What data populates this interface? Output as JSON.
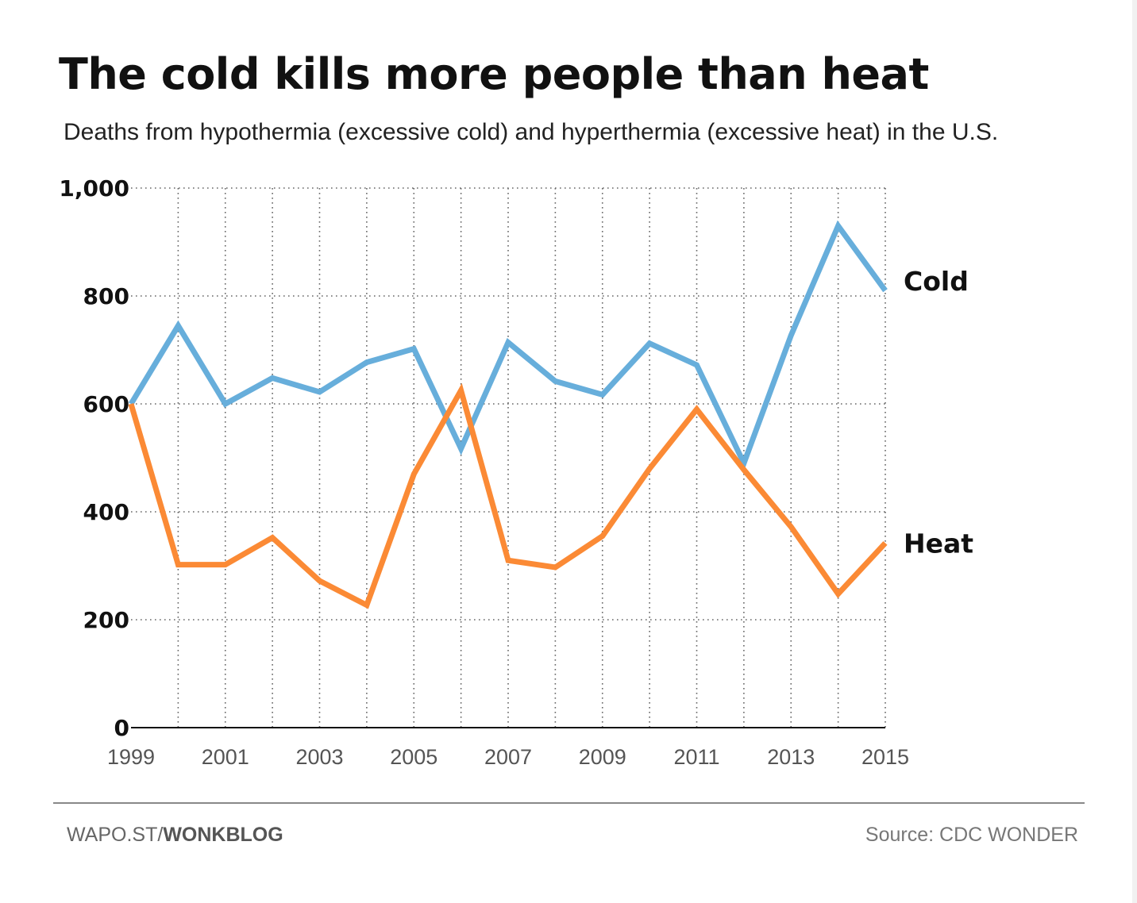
{
  "title": "The cold kills more people than heat",
  "subtitle": "Deaths from hypothermia (excessive cold) and hyperthermia (excessive heat) in the U.S.",
  "footer": {
    "left_prefix": "WAPO.ST/",
    "left_bold": "WONKBLOG",
    "source": "Source: CDC WONDER"
  },
  "colors": {
    "cold": "#67aedb",
    "heat": "#fb8a35",
    "grid": "#666666",
    "axis": "#111111"
  },
  "chart_data": {
    "type": "line",
    "x": [
      1999,
      2000,
      2001,
      2002,
      2003,
      2004,
      2005,
      2006,
      2007,
      2008,
      2009,
      2010,
      2011,
      2012,
      2013,
      2014,
      2015
    ],
    "x_tick_labels": [
      "1999",
      "2001",
      "2003",
      "2005",
      "2007",
      "2009",
      "2011",
      "2013",
      "2015"
    ],
    "y_tick_labels": [
      "0",
      "200",
      "400",
      "600",
      "800",
      "1,000"
    ],
    "y_ticks": [
      0,
      200,
      400,
      600,
      800,
      1000
    ],
    "ylim": [
      0,
      1000
    ],
    "xlim": [
      1999,
      2015
    ],
    "grid": true,
    "series": [
      {
        "name": "Cold",
        "color": "#67aedb",
        "values": [
          600,
          745,
          600,
          648,
          622,
          677,
          702,
          517,
          714,
          642,
          617,
          712,
          672,
          490,
          727,
          930,
          810
        ]
      },
      {
        "name": "Heat",
        "color": "#fb8a35",
        "values": [
          600,
          302,
          302,
          352,
          272,
          227,
          470,
          625,
          310,
          297,
          355,
          480,
          590,
          478,
          372,
          248,
          342
        ]
      }
    ]
  }
}
